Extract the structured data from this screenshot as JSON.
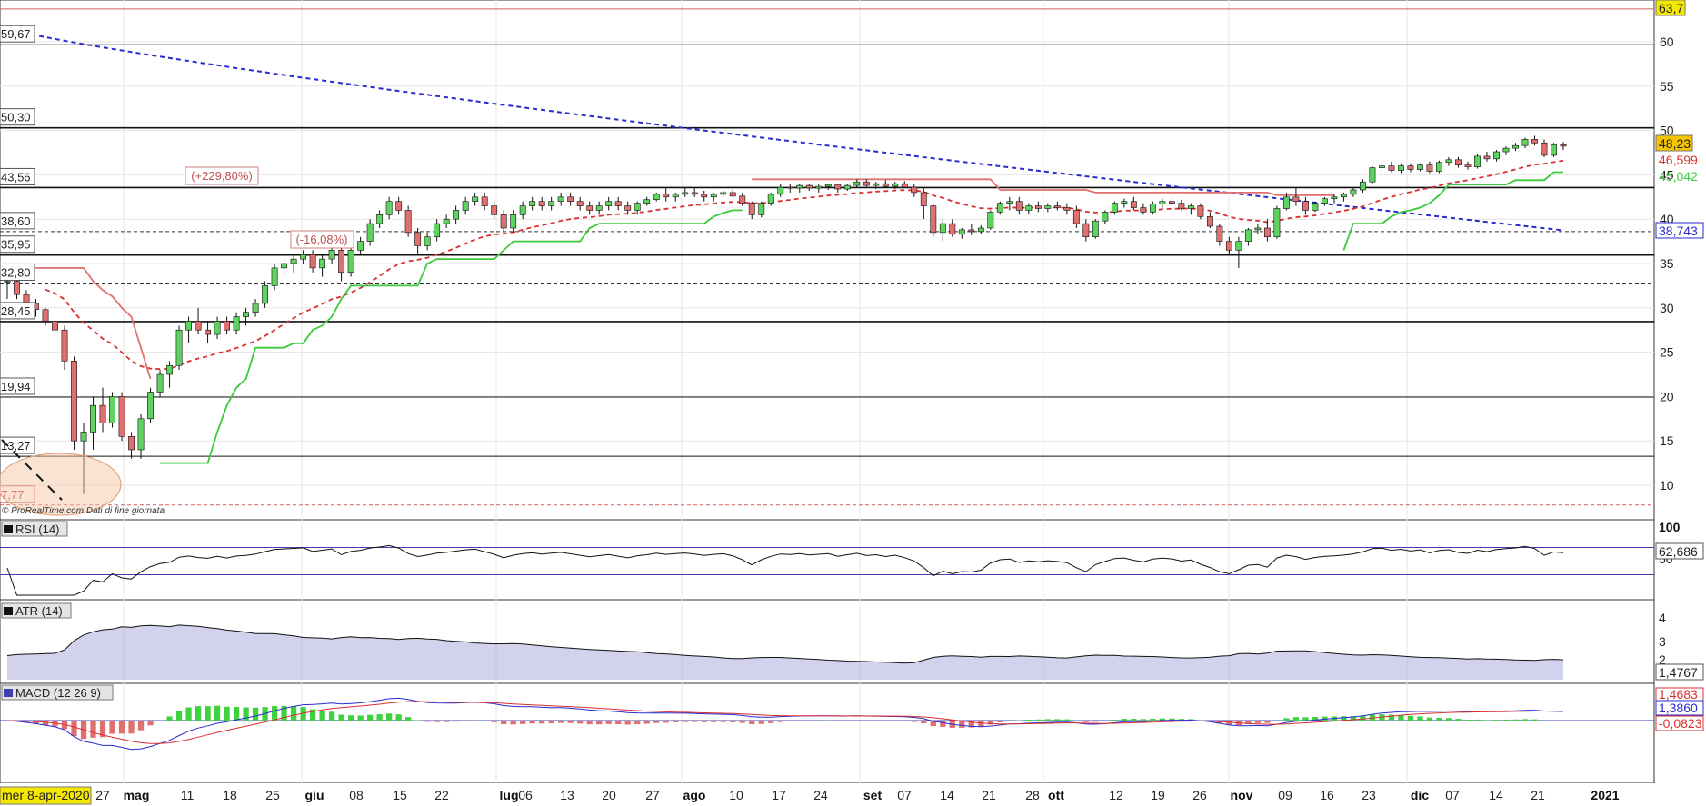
{
  "credit": "© ProRealTime.com Dati di fine giornata",
  "colors": {
    "up": "#5fd35f",
    "down": "#e07070",
    "blue": "#2a2ad0",
    "red": "#d83030",
    "green": "#3cc83c",
    "atrFill": "#9c9cd8",
    "hist": "#3fd13f"
  },
  "date_cursor": "mer 8-apr-2020",
  "price_axis": {
    "ticks": [
      "60",
      "55",
      "50",
      "45",
      "40",
      "35",
      "30",
      "25",
      "20",
      "15",
      "10"
    ],
    "top_badge": "63,7"
  },
  "price_badges": {
    "last": "48,23",
    "red_ma": "46,599",
    "green_stop": "45,042",
    "blue_ma": "38,743"
  },
  "level_labels": [
    "59,67",
    "50,30",
    "43,56",
    "38,60",
    "35,95",
    "32,80",
    "28,45",
    "19,94",
    "13,27",
    "7,77"
  ],
  "annotations": {
    "pct_up": "(+229,80%)",
    "pct_down": "(-16,08%)"
  },
  "x_axis": {
    "months": [
      "mag",
      "giu",
      "lug",
      "ago",
      "set",
      "ott",
      "nov",
      "dic"
    ],
    "days": [
      "27",
      "11",
      "18",
      "25",
      "08",
      "15",
      "22",
      "06",
      "13",
      "20",
      "27",
      "10",
      "17",
      "24",
      "07",
      "14",
      "21",
      "28",
      "12",
      "19",
      "26",
      "09",
      "16",
      "23",
      "07",
      "14",
      "21"
    ],
    "year": "2021"
  },
  "rsi": {
    "label": "RSI (14)",
    "top": "100",
    "mid": "50",
    "value": "62,686"
  },
  "atr": {
    "label": "ATR (14)",
    "ticks": [
      "4",
      "3",
      "2"
    ],
    "value": "1,4767"
  },
  "macd": {
    "label": "MACD (12 26 9)",
    "values": [
      "1,4683",
      "1,3860",
      "-0,0823"
    ]
  },
  "chart_data": {
    "type": "candlestick",
    "y_range": [
      7,
      64
    ],
    "horizontal_levels": [
      63.7,
      59.67,
      50.3,
      43.56,
      38.6,
      35.95,
      32.8,
      28.45,
      19.94,
      13.27,
      7.77
    ],
    "candles": [
      [
        33,
        34,
        31,
        33
      ],
      [
        33,
        33.5,
        31,
        31.5
      ],
      [
        31.5,
        32,
        30,
        30.5
      ],
      [
        30.5,
        31,
        29,
        29.8
      ],
      [
        29.8,
        30,
        28,
        28.5
      ],
      [
        28.5,
        29,
        27,
        27.5
      ],
      [
        27.5,
        28,
        23,
        24
      ],
      [
        24,
        24.5,
        14,
        15
      ],
      [
        15,
        17,
        9,
        16
      ],
      [
        16,
        20,
        14,
        19
      ],
      [
        19,
        21,
        16,
        17
      ],
      [
        17,
        20.5,
        16.5,
        20
      ],
      [
        20,
        20.5,
        15,
        15.5
      ],
      [
        15.5,
        16,
        13,
        14
      ],
      [
        14,
        18,
        13,
        17.5
      ],
      [
        17.5,
        21,
        17,
        20.5
      ],
      [
        20.5,
        23,
        20,
        22.5
      ],
      [
        22.5,
        24,
        21,
        23.5
      ],
      [
        23.5,
        28,
        23,
        27.5
      ],
      [
        27.5,
        29,
        26,
        28.5
      ],
      [
        28.5,
        30,
        27,
        27.5
      ],
      [
        27.5,
        28.5,
        26,
        27
      ],
      [
        27,
        29,
        26.5,
        28.5
      ],
      [
        28.5,
        29,
        27,
        27.5
      ],
      [
        27.5,
        29.5,
        27,
        29
      ],
      [
        29,
        30,
        28,
        29.5
      ],
      [
        29.5,
        31,
        29,
        30.5
      ],
      [
        30.5,
        33,
        30,
        32.5
      ],
      [
        32.5,
        35,
        32,
        34.5
      ],
      [
        34.5,
        35.5,
        33.5,
        35
      ],
      [
        35,
        36,
        34,
        35.5
      ],
      [
        35.5,
        36.5,
        35,
        36
      ],
      [
        36,
        36.5,
        34,
        34.5
      ],
      [
        34.5,
        36,
        33.5,
        35.5
      ],
      [
        35.5,
        37,
        35,
        36.5
      ],
      [
        36.5,
        37,
        33,
        34
      ],
      [
        34,
        37,
        33.5,
        36.5
      ],
      [
        36.5,
        38,
        36,
        37.5
      ],
      [
        37.5,
        40,
        37,
        39.5
      ],
      [
        39.5,
        41,
        39,
        40.5
      ],
      [
        40.5,
        42.5,
        40,
        42
      ],
      [
        42,
        42.5,
        40.5,
        41
      ],
      [
        41,
        41.5,
        38,
        38.5
      ],
      [
        38.5,
        39,
        36,
        37
      ],
      [
        37,
        38.5,
        36.5,
        38
      ],
      [
        38,
        40,
        37.5,
        39.5
      ],
      [
        39.5,
        40.5,
        39,
        40
      ],
      [
        40,
        41.5,
        39.5,
        41
      ],
      [
        41,
        42.5,
        40.5,
        42
      ],
      [
        42,
        43,
        41.5,
        42.5
      ],
      [
        42.5,
        43,
        41,
        41.5
      ],
      [
        41.5,
        42,
        40,
        40.5
      ],
      [
        40.5,
        41,
        38.5,
        39
      ],
      [
        39,
        41,
        38.5,
        40.5
      ],
      [
        40.5,
        42,
        40,
        41.5
      ],
      [
        41.5,
        42.5,
        41,
        42
      ],
      [
        42,
        42.5,
        41,
        41.5
      ],
      [
        41.5,
        42.5,
        41,
        42
      ],
      [
        42,
        43,
        41.5,
        42.5
      ],
      [
        42.5,
        43,
        41.5,
        42
      ],
      [
        42,
        42.5,
        41,
        41.5
      ],
      [
        41.5,
        42,
        40.5,
        41
      ],
      [
        41,
        42,
        40.5,
        41.5
      ],
      [
        41.5,
        42.5,
        41,
        42
      ],
      [
        42,
        42.5,
        41,
        41.5
      ],
      [
        41.5,
        42,
        40.5,
        41
      ],
      [
        41,
        42,
        40.5,
        41.8
      ],
      [
        41.8,
        42.5,
        41.5,
        42.2
      ],
      [
        42.2,
        43,
        42,
        42.8
      ],
      [
        42.8,
        43.5,
        42,
        42.5
      ],
      [
        42.5,
        43,
        42,
        42.8
      ],
      [
        42.8,
        43.5,
        42.5,
        43
      ],
      [
        43,
        43.5,
        42.5,
        42.8
      ],
      [
        42.8,
        43.2,
        42,
        42.5
      ],
      [
        42.5,
        43,
        42,
        42.8
      ],
      [
        42.8,
        43.2,
        42.5,
        43
      ],
      [
        43,
        43.3,
        42.5,
        42.6
      ],
      [
        42.6,
        43,
        41.5,
        41.8
      ],
      [
        41.8,
        42,
        40,
        40.5
      ],
      [
        40.5,
        42,
        40.2,
        41.8
      ],
      [
        41.8,
        43,
        41.5,
        42.8
      ],
      [
        42.8,
        44,
        42.5,
        43.6
      ],
      [
        43.6,
        44,
        43,
        43.5
      ],
      [
        43.5,
        44,
        43,
        43.8
      ],
      [
        43.8,
        44,
        43.2,
        43.5
      ],
      [
        43.5,
        44,
        43,
        43.7
      ],
      [
        43.7,
        44,
        43.3,
        43.9
      ],
      [
        43.9,
        44,
        43,
        43.4
      ],
      [
        43.4,
        44,
        43.2,
        43.8
      ],
      [
        43.8,
        44.5,
        43.5,
        44.2
      ],
      [
        44.2,
        44.5,
        43.5,
        43.8
      ],
      [
        43.8,
        44.2,
        43.4,
        44
      ],
      [
        44,
        44.4,
        43.5,
        43.7
      ],
      [
        43.7,
        44.2,
        43.4,
        44
      ],
      [
        44,
        44.3,
        43.5,
        43.6
      ],
      [
        43.6,
        44,
        42.5,
        43
      ],
      [
        43,
        43.5,
        40,
        41.5
      ],
      [
        41.5,
        41.8,
        38,
        38.5
      ],
      [
        38.5,
        40,
        37.5,
        39.5
      ],
      [
        39.5,
        40,
        38,
        38.3
      ],
      [
        38.3,
        39,
        37.8,
        38.8
      ],
      [
        38.8,
        39.5,
        38.2,
        38.6
      ],
      [
        38.6,
        39.3,
        38.3,
        39
      ],
      [
        39,
        41,
        38.8,
        40.8
      ],
      [
        40.8,
        42,
        40.5,
        41.8
      ],
      [
        41.8,
        42.5,
        41,
        42
      ],
      [
        42,
        42.5,
        40.5,
        41
      ],
      [
        41,
        41.8,
        40.5,
        41.5
      ],
      [
        41.5,
        42,
        40.8,
        41.2
      ],
      [
        41.2,
        41.8,
        40.8,
        41.5
      ],
      [
        41.5,
        42,
        41,
        41.3
      ],
      [
        41.3,
        41.8,
        40.5,
        41
      ],
      [
        41,
        41.5,
        39,
        39.5
      ],
      [
        39.5,
        40,
        37.5,
        38
      ],
      [
        38,
        40,
        37.8,
        39.8
      ],
      [
        39.8,
        41,
        39.5,
        40.8
      ],
      [
        40.8,
        42,
        40.5,
        41.8
      ],
      [
        41.8,
        42.3,
        41.3,
        42
      ],
      [
        42,
        42.5,
        41,
        41.3
      ],
      [
        41.3,
        41.8,
        40.5,
        40.8
      ],
      [
        40.8,
        42,
        40.5,
        41.7
      ],
      [
        41.7,
        42.3,
        41.2,
        42
      ],
      [
        42,
        42.5,
        41.5,
        41.8
      ],
      [
        41.8,
        42.2,
        41,
        41.2
      ],
      [
        41.2,
        41.8,
        40.5,
        41.5
      ],
      [
        41.5,
        41.8,
        40,
        40.3
      ],
      [
        40.3,
        40.8,
        39,
        39.2
      ],
      [
        39.2,
        39.5,
        37,
        37.5
      ],
      [
        37.5,
        38,
        36,
        36.5
      ],
      [
        36.5,
        38,
        34.5,
        37.5
      ],
      [
        37.5,
        39,
        37,
        38.8
      ],
      [
        38.8,
        39.5,
        38.3,
        39
      ],
      [
        39,
        40,
        37.5,
        38
      ],
      [
        38,
        41.5,
        37.8,
        41.2
      ],
      [
        41.2,
        43,
        41,
        42.5
      ],
      [
        42.5,
        43.5,
        41.5,
        42
      ],
      [
        42,
        42.5,
        40.5,
        41
      ],
      [
        41,
        42,
        40.8,
        41.8
      ],
      [
        41.8,
        42.5,
        41.5,
        42.3
      ],
      [
        42.3,
        42.8,
        41.8,
        42.5
      ],
      [
        42.5,
        43,
        42,
        42.8
      ],
      [
        42.8,
        43.5,
        42.5,
        43.3
      ],
      [
        43.3,
        44.5,
        43,
        44.2
      ],
      [
        44.2,
        46,
        44,
        45.8
      ],
      [
        45.8,
        46.5,
        45,
        46
      ],
      [
        46,
        46.5,
        45.3,
        45.5
      ],
      [
        45.5,
        46.2,
        45.2,
        46
      ],
      [
        46,
        46.3,
        45.3,
        45.6
      ],
      [
        45.6,
        46.3,
        45.4,
        46.1
      ],
      [
        46.1,
        46.5,
        45.2,
        45.4
      ],
      [
        45.4,
        46.6,
        45.2,
        46.4
      ],
      [
        46.4,
        47,
        46,
        46.7
      ],
      [
        46.7,
        47,
        45.8,
        46.1
      ],
      [
        46.1,
        46.5,
        45.6,
        45.9
      ],
      [
        45.9,
        47.3,
        45.7,
        47.1
      ],
      [
        47.1,
        47.6,
        46.5,
        46.8
      ],
      [
        46.8,
        47.8,
        46.5,
        47.6
      ],
      [
        47.6,
        48.2,
        47.2,
        48
      ],
      [
        48,
        48.6,
        47.7,
        48.3
      ],
      [
        48.3,
        49.2,
        48,
        49
      ],
      [
        49,
        49.4,
        48.3,
        48.6
      ],
      [
        48.6,
        49,
        47,
        47.2
      ],
      [
        47.2,
        48.6,
        47,
        48.4
      ],
      [
        48.4,
        48.7,
        47.8,
        48.23
      ]
    ]
  }
}
